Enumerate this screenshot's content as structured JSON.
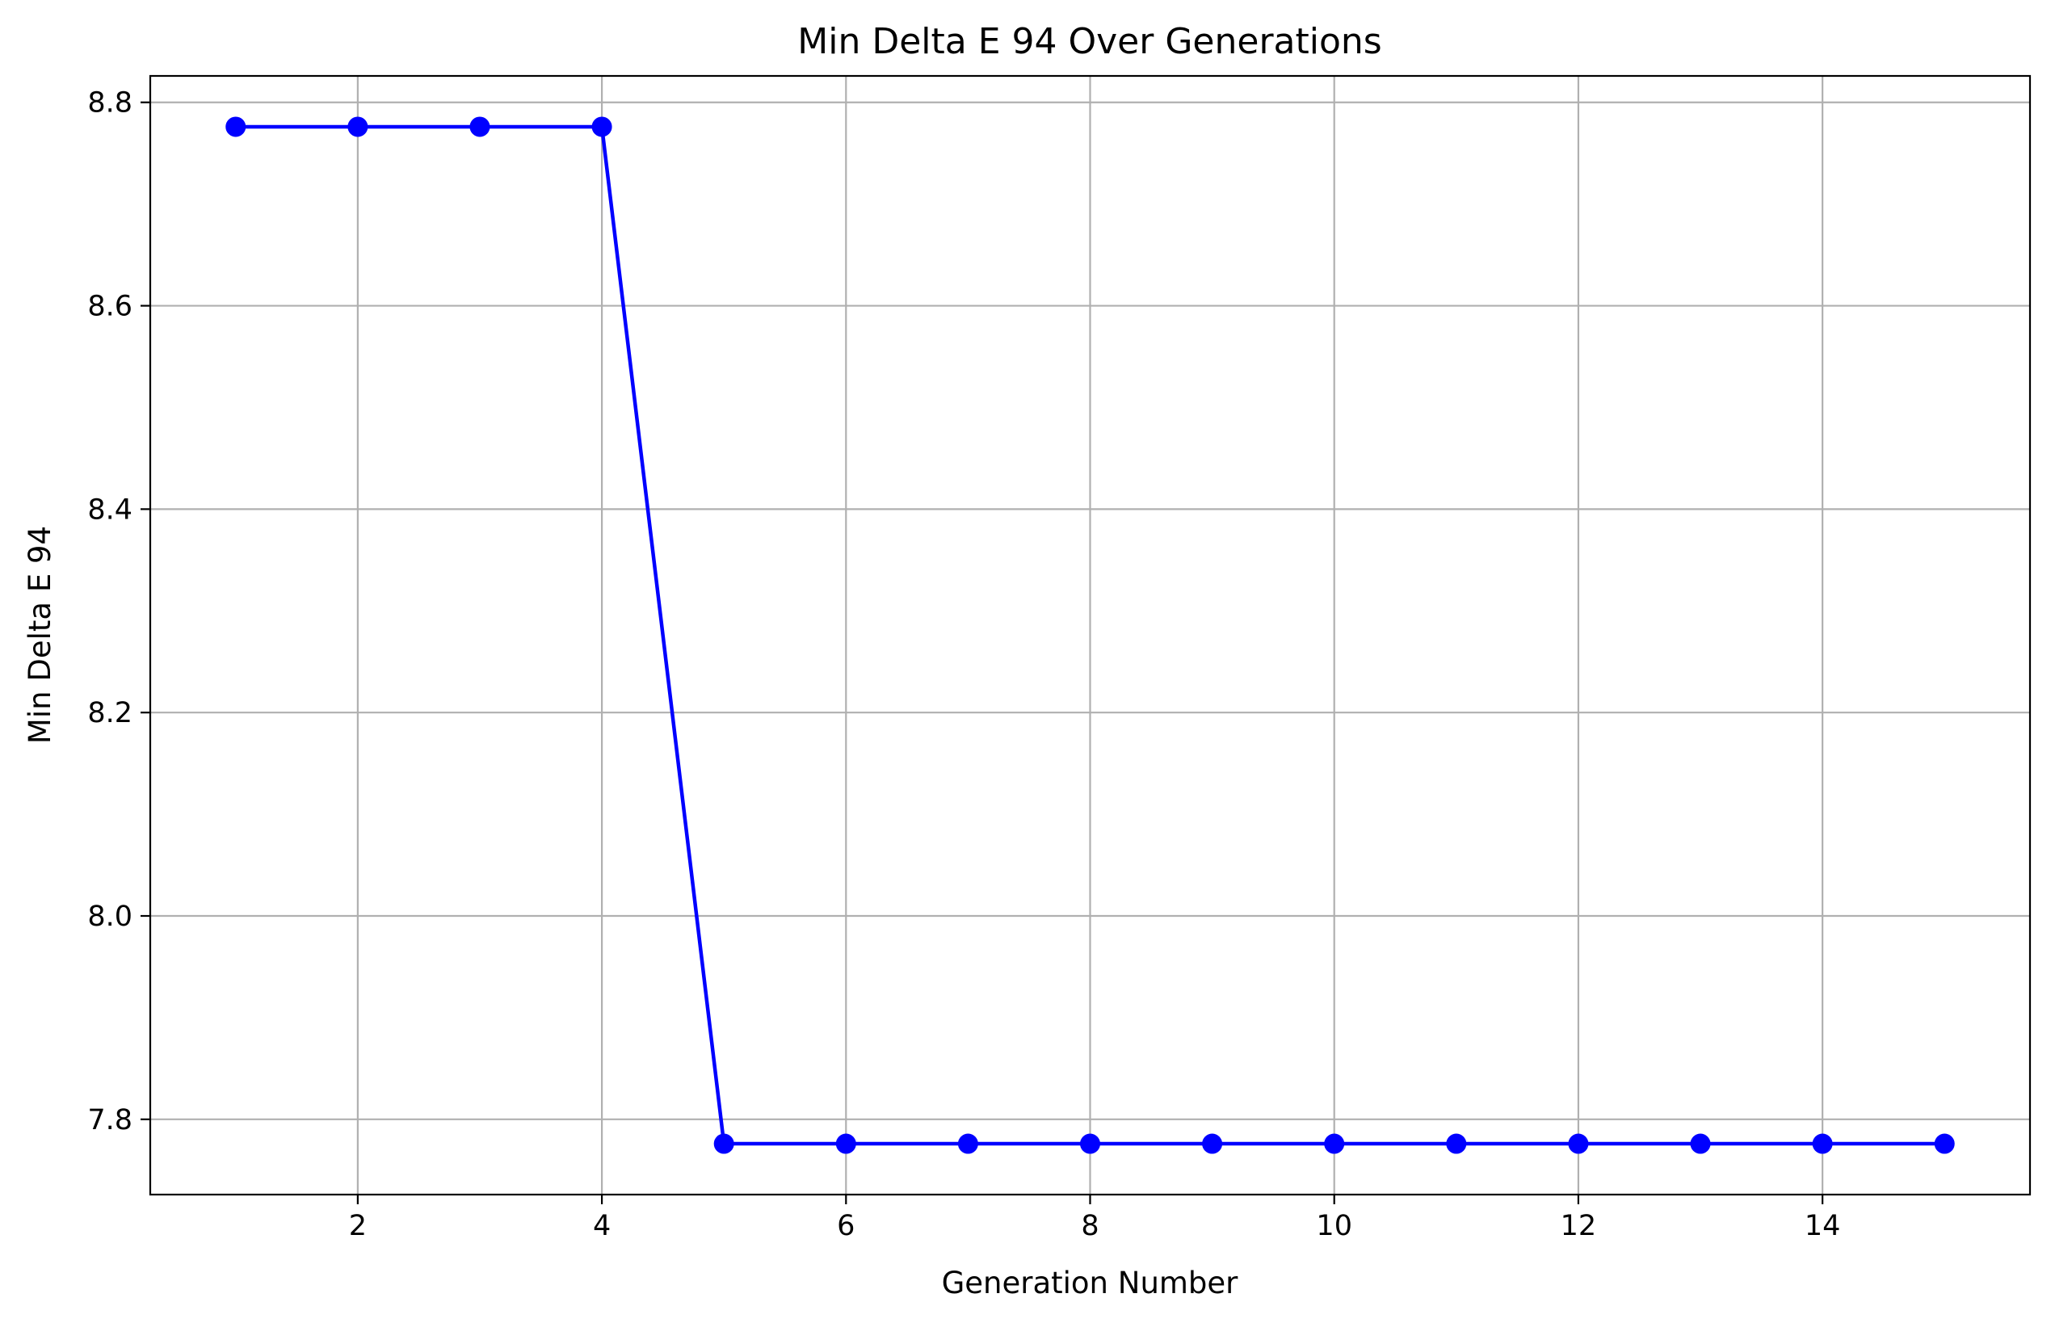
{
  "chart_data": {
    "type": "line",
    "title": "Min Delta E 94 Over Generations",
    "xlabel": "Generation Number",
    "ylabel": "Min Delta E 94",
    "xlim": [
      0.3,
      15.7
    ],
    "ylim": [
      7.726,
      8.826
    ],
    "x_ticks": [
      2,
      4,
      6,
      8,
      10,
      12,
      14
    ],
    "y_ticks": [
      7.8,
      8.0,
      8.2,
      8.4,
      8.6,
      8.8
    ],
    "x_tick_labels": [
      "2",
      "4",
      "6",
      "8",
      "10",
      "12",
      "14"
    ],
    "y_tick_labels": [
      "7.8",
      "8.0",
      "8.2",
      "8.4",
      "8.6",
      "8.8"
    ],
    "grid": true,
    "series": [
      {
        "x": [
          1,
          2,
          3,
          4,
          5,
          6,
          7,
          8,
          9,
          10,
          11,
          12,
          13,
          14,
          15
        ],
        "values": [
          8.776,
          8.776,
          8.776,
          8.776,
          7.776,
          7.776,
          7.776,
          7.776,
          7.776,
          7.776,
          7.776,
          7.776,
          7.776,
          7.776,
          7.776
        ],
        "color": "#0000ff",
        "marker": "circle"
      }
    ]
  }
}
